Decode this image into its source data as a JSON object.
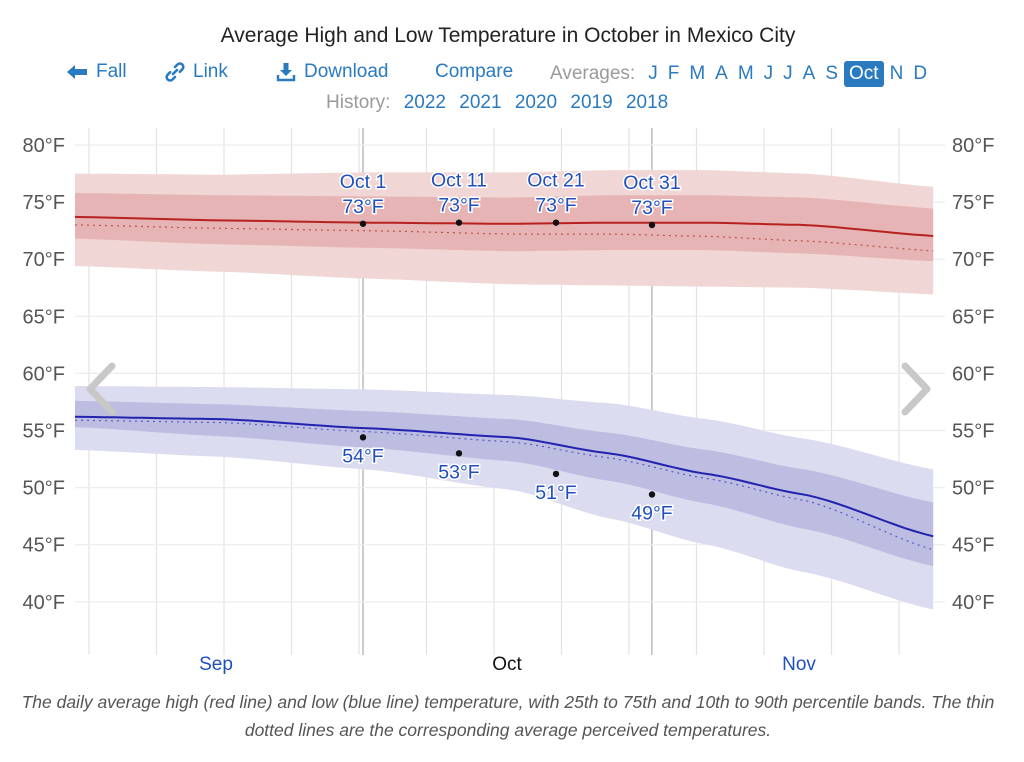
{
  "header": {
    "title": "Average High and Low Temperature in October in Mexico City"
  },
  "nav": {
    "back_label": "Fall",
    "link_label": "Link",
    "download_label": "Download",
    "compare_label": "Compare",
    "averages_label": "Averages:",
    "months": [
      "J",
      "F",
      "M",
      "A",
      "M",
      "J",
      "J",
      "A",
      "S",
      "Oct",
      "N",
      "D"
    ],
    "selected_month_index": 9,
    "history_label": "History:",
    "years": [
      "2022",
      "2021",
      "2020",
      "2019",
      "2018"
    ]
  },
  "colors": {
    "link": "#2a7ac0",
    "high_line": "#b8211e",
    "high_band_inner": "#e6b4b4",
    "high_band_outer": "#f1d6d6",
    "low_line": "#2222b0",
    "low_band_inner": "#bcbde0",
    "low_band_outer": "#dcdcf0",
    "selected_month_bg": "#2a7ac0"
  },
  "caption": "The daily average high (red line) and low (blue line) temperature, with 25th to 75th and 10th to 90th percentile bands. The thin dotted lines are the corresponding average perceived temperatures.",
  "chart_data": {
    "type": "area",
    "title": "Average High and Low Temperature in October in Mexico City",
    "xlabel": "",
    "ylabel": "",
    "x_unit": "day offset from Oct 1",
    "xlim": [
      -45,
      44
    ],
    "ylim": [
      36,
      81
    ],
    "y_ticks": [
      40,
      45,
      50,
      55,
      60,
      65,
      70,
      75,
      80
    ],
    "y_tick_labels": [
      "40°F",
      "45°F",
      "50°F",
      "55°F",
      "60°F",
      "65°F",
      "70°F",
      "75°F",
      "80°F"
    ],
    "x_month_labels": [
      {
        "label": "Sep",
        "day": -15,
        "highlight": false
      },
      {
        "label": "Oct",
        "day": 15,
        "highlight": true
      },
      {
        "label": "Nov",
        "day": 45,
        "highlight": false
      }
    ],
    "grid": true,
    "x": [
      -45,
      -30,
      -15,
      0,
      10,
      20,
      30,
      44
    ],
    "series": [
      {
        "name": "Average high",
        "values": [
          73.7,
          73.4,
          73.2,
          73.1,
          73.2,
          73.2,
          73.0,
          72.0
        ]
      },
      {
        "name": "High perceived (dotted)",
        "values": [
          73.0,
          72.7,
          72.5,
          72.2,
          72.2,
          72.0,
          71.6,
          70.7
        ]
      },
      {
        "name": "High 25th percentile",
        "values": [
          71.8,
          71.3,
          71.0,
          70.7,
          70.8,
          70.8,
          70.5,
          69.8
        ]
      },
      {
        "name": "High 75th percentile",
        "values": [
          75.8,
          75.6,
          75.5,
          75.4,
          75.6,
          75.6,
          75.4,
          74.4
        ]
      },
      {
        "name": "High 10th percentile",
        "values": [
          69.4,
          68.9,
          68.3,
          67.8,
          67.7,
          67.6,
          67.5,
          66.9
        ]
      },
      {
        "name": "High 90th percentile",
        "values": [
          77.5,
          77.4,
          77.6,
          77.6,
          77.8,
          77.8,
          77.5,
          76.3
        ]
      },
      {
        "name": "Average low",
        "values": [
          56.2,
          56.0,
          55.2,
          54.4,
          53.0,
          51.2,
          49.4,
          45.6
        ]
      },
      {
        "name": "Low perceived (dotted)",
        "values": [
          55.9,
          55.7,
          54.9,
          54.0,
          52.6,
          50.8,
          48.9,
          44.4
        ]
      },
      {
        "name": "Low 25th percentile",
        "values": [
          55.3,
          54.5,
          53.5,
          52.3,
          50.6,
          48.6,
          46.4,
          43.0
        ]
      },
      {
        "name": "Low 75th percentile",
        "values": [
          57.6,
          57.3,
          56.7,
          56.0,
          54.8,
          53.3,
          51.6,
          48.6
        ]
      },
      {
        "name": "Low 10th percentile",
        "values": [
          53.3,
          52.7,
          51.6,
          49.8,
          47.3,
          45.0,
          42.6,
          39.2
        ]
      },
      {
        "name": "Low 90th percentile",
        "values": [
          58.9,
          58.8,
          58.6,
          58.1,
          57.4,
          56.0,
          54.3,
          51.5
        ]
      }
    ],
    "annotations": [
      {
        "day": 0,
        "date": "Oct 1",
        "high": "73°F",
        "low": "54°F",
        "high_value": 73.1,
        "low_value": 54.4
      },
      {
        "day": 10,
        "date": "Oct 11",
        "high": "73°F",
        "low": "53°F",
        "high_value": 73.2,
        "low_value": 53.0
      },
      {
        "day": 20,
        "date": "Oct 21",
        "high": "73°F",
        "low": "51°F",
        "high_value": 73.2,
        "low_value": 51.2
      },
      {
        "day": 30,
        "date": "Oct 31",
        "high": "73°F",
        "low": "49°F",
        "high_value": 73.0,
        "low_value": 49.4
      }
    ]
  }
}
